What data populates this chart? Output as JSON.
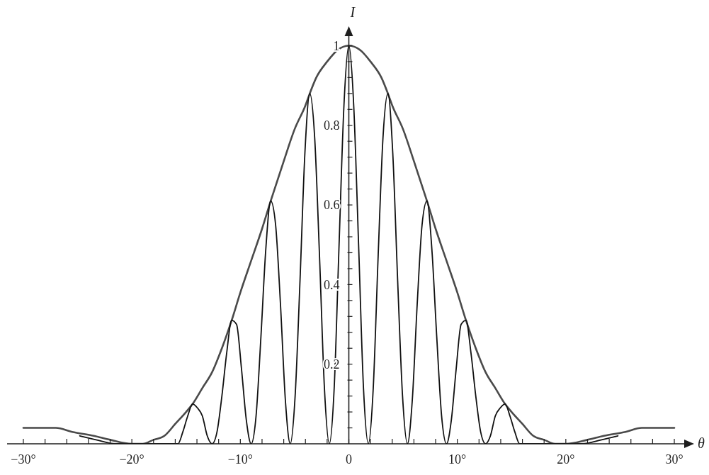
{
  "chart_data": {
    "type": "line",
    "xlabel": "θ",
    "ylabel": "I",
    "xlim": [
      -31.5,
      31.5
    ],
    "ylim": [
      0,
      1.04
    ],
    "xticks": [
      {
        "value": -30,
        "label": "−30°"
      },
      {
        "value": -28,
        "label": null
      },
      {
        "value": -26,
        "label": null
      },
      {
        "value": -24,
        "label": null
      },
      {
        "value": -22,
        "label": null
      },
      {
        "value": -20,
        "label": "−20°"
      },
      {
        "value": -18,
        "label": null
      },
      {
        "value": -16,
        "label": null
      },
      {
        "value": -14,
        "label": null
      },
      {
        "value": -12,
        "label": null
      },
      {
        "value": -10,
        "label": "−10°"
      },
      {
        "value": -8,
        "label": null
      },
      {
        "value": -6,
        "label": null
      },
      {
        "value": -4,
        "label": null
      },
      {
        "value": -2,
        "label": null
      },
      0,
      {
        "value": 2,
        "label": null
      },
      {
        "value": 4,
        "label": null
      },
      {
        "value": 6,
        "label": null
      },
      {
        "value": 8,
        "label": null
      },
      {
        "value": 10,
        "label": "10°"
      },
      {
        "value": 12,
        "label": null
      },
      {
        "value": 14,
        "label": null
      },
      {
        "value": 16,
        "label": null
      },
      {
        "value": 18,
        "label": null
      },
      {
        "value": 20,
        "label": "20°"
      },
      {
        "value": 22,
        "label": null
      },
      {
        "value": 24,
        "label": null
      },
      {
        "value": 26,
        "label": null
      },
      {
        "value": 28,
        "label": null
      },
      {
        "value": 30,
        "label": "30°"
      }
    ],
    "yticks": [
      {
        "value": 0.04,
        "label": null
      },
      {
        "value": 0.08,
        "label": null
      },
      {
        "value": 0.12,
        "label": null
      },
      {
        "value": 0.16,
        "label": null
      },
      0.2,
      {
        "value": 0.24,
        "label": null
      },
      {
        "value": 0.28,
        "label": null
      },
      {
        "value": 0.32,
        "label": null
      },
      {
        "value": 0.36,
        "label": null
      },
      0.4,
      {
        "value": 0.44,
        "label": null
      },
      {
        "value": 0.48,
        "label": null
      },
      {
        "value": 0.52,
        "label": null
      },
      {
        "value": 0.56,
        "label": null
      },
      0.6,
      {
        "value": 0.64,
        "label": null
      },
      {
        "value": 0.68,
        "label": null
      },
      {
        "value": 0.72,
        "label": null
      },
      {
        "value": 0.76,
        "label": null
      },
      0.8,
      {
        "value": 0.84,
        "label": null
      },
      {
        "value": 0.88,
        "label": null
      },
      {
        "value": 0.92,
        "label": null
      },
      {
        "value": 0.96,
        "label": null
      },
      1
    ],
    "marker": "none",
    "line_style": "solid",
    "series": [
      {
        "color": "#4a4a4a",
        "x": [
          -30,
          -27,
          -25.5,
          -23.5,
          -22,
          -20,
          -19,
          -18,
          -17,
          -16,
          -15,
          -14.4,
          -13.5,
          -12.6,
          -11.7,
          -10.8,
          -10,
          -9,
          -8,
          -7.2,
          -6,
          -5,
          -4,
          -3.6,
          -3,
          -2,
          -1,
          0,
          1,
          2,
          3,
          3.6,
          4,
          5,
          6,
          7.2,
          8,
          9,
          10,
          10.8,
          11.7,
          12.6,
          13.5,
          14.4,
          15,
          16,
          17,
          18,
          19,
          20,
          22,
          23.5,
          25.5,
          27,
          30
        ],
        "values": [
          0.04,
          0.04,
          0.03,
          0.02,
          0.01,
          0,
          0,
          0.01,
          0.02,
          0.05,
          0.08,
          0.1,
          0.14,
          0.18,
          0.24,
          0.31,
          0.38,
          0.46,
          0.54,
          0.61,
          0.71,
          0.79,
          0.85,
          0.88,
          0.92,
          0.96,
          0.99,
          1,
          0.99,
          0.96,
          0.92,
          0.88,
          0.85,
          0.79,
          0.71,
          0.61,
          0.54,
          0.46,
          0.38,
          0.31,
          0.24,
          0.18,
          0.14,
          0.1,
          0.08,
          0.05,
          0.02,
          0.01,
          0,
          0,
          0.01,
          0.02,
          0.03,
          0.04,
          0.04
        ]
      },
      {
        "color": "#111111",
        "x": [
          -24.8,
          -23.3,
          -21.5,
          -18,
          -15.75,
          -15.3,
          -14.85,
          -14.4,
          -13.95,
          -13.5,
          -13.05,
          -12.6,
          -12.15,
          -11.7,
          -11.25,
          -10.8,
          -10.35,
          -9.9,
          -9.45,
          -9,
          -8.55,
          -8.1,
          -7.65,
          -7.2,
          -6.75,
          -6.3,
          -5.85,
          -5.4,
          -4.95,
          -4.5,
          -4.05,
          -3.6,
          -3.15,
          -2.7,
          -2.25,
          -1.8,
          -1.35,
          -0.9,
          -0.45,
          0,
          0.45,
          0.9,
          1.35,
          1.8,
          2.25,
          2.7,
          3.15,
          3.6,
          4.05,
          4.5,
          4.95,
          5.4,
          5.85,
          6.3,
          6.75,
          7.2,
          7.65,
          8.1,
          8.55,
          9,
          9.45,
          9.9,
          10.35,
          10.8,
          11.25,
          11.7,
          12.15,
          12.6,
          13.05,
          13.5,
          13.95,
          14.4,
          14.85,
          15.3,
          15.75,
          18,
          21.5,
          23.3,
          24.8
        ],
        "values": [
          0.02,
          0.01,
          0,
          0,
          0,
          0.03,
          0.07,
          0.1,
          0.09,
          0.07,
          0.02,
          0,
          0.03,
          0.12,
          0.23,
          0.31,
          0.3,
          0.19,
          0.06,
          0,
          0.07,
          0.27,
          0.49,
          0.61,
          0.55,
          0.35,
          0.11,
          0,
          0.12,
          0.41,
          0.73,
          0.88,
          0.77,
          0.47,
          0.14,
          0,
          0.14,
          0.5,
          0.85,
          1,
          0.85,
          0.5,
          0.14,
          0,
          0.14,
          0.47,
          0.77,
          0.88,
          0.73,
          0.41,
          0.12,
          0,
          0.11,
          0.35,
          0.55,
          0.61,
          0.49,
          0.27,
          0.07,
          0,
          0.06,
          0.19,
          0.3,
          0.31,
          0.23,
          0.12,
          0.03,
          0,
          0.02,
          0.07,
          0.09,
          0.1,
          0.07,
          0.03,
          0,
          0,
          0,
          0.01,
          0.02
        ]
      }
    ]
  }
}
